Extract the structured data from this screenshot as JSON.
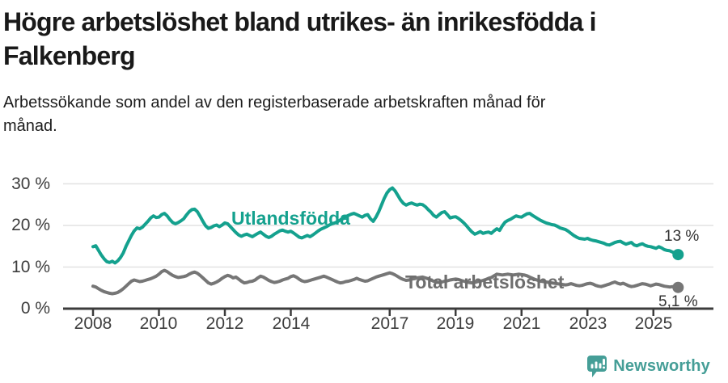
{
  "header": {
    "title_lines": [
      "Högre arbetslöshet bland utrikes- än inrikesfödda i",
      "Falkenberg"
    ],
    "subtitle_lines": [
      "Arbetssökande som andel av den registerbaserade arbetskraften månad för",
      "månad."
    ]
  },
  "chart_data": {
    "type": "line",
    "title": "Högre arbetslöshet bland utrikes- än inrikesfödda i Falkenberg",
    "subtitle": "Arbetssökande som andel av den registerbaserade arbetskraften månad för månad.",
    "unit": "%",
    "x_start": "2008-01",
    "x_end": "2025-10",
    "x_step": "month",
    "ylim": [
      0,
      30
    ],
    "grid": "horizontal",
    "legend_position": "inline-labels",
    "y_axis": {
      "labels": [
        "30 %",
        "20 %",
        "10 %",
        "0 %"
      ],
      "values": [
        30,
        20,
        10,
        0
      ]
    },
    "x_axis": {
      "labels": [
        "2008",
        "2010",
        "2012",
        "2014",
        "2017",
        "2019",
        "2021",
        "2023",
        "2025"
      ],
      "values": [
        2008,
        2010,
        2012,
        2014,
        2017,
        2019,
        2021,
        2023,
        2025
      ]
    },
    "series": [
      {
        "name": "Utlandsfödda",
        "color": "#14a18e",
        "label_color": "#14a18e",
        "end_label": "13 %",
        "end_value": 13.0,
        "values": [
          14.9,
          15.1,
          14.0,
          12.9,
          12.0,
          11.3,
          11.1,
          11.4,
          11.0,
          11.5,
          12.3,
          13.4,
          15.0,
          16.3,
          17.6,
          18.7,
          19.4,
          19.2,
          19.6,
          20.3,
          21.0,
          21.8,
          22.3,
          21.9,
          22.0,
          22.6,
          22.9,
          22.3,
          21.4,
          20.7,
          20.4,
          20.7,
          21.1,
          21.6,
          22.5,
          23.3,
          23.8,
          23.9,
          23.3,
          22.2,
          21.0,
          19.9,
          19.3,
          19.5,
          19.9,
          20.1,
          19.7,
          20.1,
          20.6,
          20.4,
          19.7,
          19.0,
          18.3,
          17.7,
          17.4,
          17.7,
          17.9,
          17.6,
          17.3,
          17.7,
          18.1,
          18.4,
          17.9,
          17.4,
          17.1,
          17.4,
          17.9,
          18.3,
          18.7,
          18.9,
          18.6,
          18.4,
          18.6,
          18.2,
          17.7,
          17.2,
          17.0,
          17.3,
          17.6,
          17.3,
          17.7,
          18.2,
          18.7,
          19.1,
          19.4,
          19.7,
          20.1,
          20.4,
          20.6,
          20.9,
          21.3,
          21.8,
          22.1,
          22.4,
          22.7,
          22.9,
          22.6,
          22.3,
          22.0,
          22.4,
          22.6,
          21.6,
          21.0,
          22.0,
          23.3,
          24.9,
          26.5,
          27.8,
          28.6,
          29.0,
          28.3,
          27.2,
          26.1,
          25.3,
          24.9,
          25.2,
          25.4,
          25.1,
          24.9,
          25.1,
          25.0,
          24.5,
          23.8,
          23.2,
          22.4,
          22.0,
          22.6,
          23.1,
          23.3,
          22.6,
          21.8,
          22.0,
          22.1,
          21.7,
          21.2,
          20.6,
          19.9,
          19.1,
          18.4,
          17.9,
          18.2,
          18.5,
          18.1,
          18.3,
          18.4,
          18.1,
          18.7,
          19.2,
          18.8,
          19.9,
          20.8,
          21.2,
          21.5,
          21.9,
          22.3,
          22.1,
          22.0,
          22.4,
          22.8,
          22.9,
          22.4,
          22.0,
          21.6,
          21.2,
          20.9,
          20.6,
          20.4,
          20.2,
          20.1,
          19.8,
          19.4,
          19.2,
          19.0,
          18.6,
          18.1,
          17.6,
          17.2,
          16.9,
          16.8,
          16.7,
          16.9,
          16.6,
          16.4,
          16.3,
          16.1,
          15.9,
          15.7,
          15.4,
          15.3,
          15.6,
          15.9,
          16.1,
          16.2,
          15.8,
          15.5,
          15.7,
          15.9,
          15.3,
          15.1,
          15.4,
          15.6,
          15.2,
          15.0,
          14.9,
          14.7,
          14.5,
          14.9,
          14.6,
          14.2,
          14.0,
          13.9,
          13.6,
          13.3,
          13.0
        ]
      },
      {
        "name": "Total arbetslöshet",
        "color": "#767676",
        "label_color": "#6e6e6e",
        "end_label": "5,1 %",
        "end_value": 5.1,
        "values": [
          5.4,
          5.2,
          4.8,
          4.4,
          4.1,
          3.9,
          3.7,
          3.6,
          3.7,
          3.9,
          4.3,
          4.8,
          5.4,
          6.0,
          6.6,
          6.9,
          6.7,
          6.5,
          6.6,
          6.8,
          7.0,
          7.2,
          7.5,
          7.8,
          8.3,
          8.9,
          9.2,
          8.9,
          8.4,
          8.0,
          7.7,
          7.5,
          7.6,
          7.7,
          7.9,
          8.3,
          8.6,
          8.8,
          8.5,
          8.0,
          7.4,
          6.8,
          6.2,
          5.9,
          6.1,
          6.4,
          6.8,
          7.3,
          7.7,
          8.0,
          7.8,
          7.4,
          7.6,
          7.1,
          6.6,
          6.2,
          6.3,
          6.5,
          6.6,
          6.9,
          7.4,
          7.8,
          7.6,
          7.2,
          6.8,
          6.5,
          6.3,
          6.4,
          6.6,
          6.9,
          7.1,
          7.3,
          7.7,
          7.9,
          7.6,
          7.1,
          6.7,
          6.5,
          6.6,
          6.8,
          7.0,
          7.2,
          7.4,
          7.6,
          7.8,
          7.6,
          7.3,
          7.0,
          6.7,
          6.4,
          6.2,
          6.3,
          6.5,
          6.6,
          6.8,
          7.0,
          7.3,
          7.0,
          6.8,
          6.6,
          6.7,
          7.0,
          7.3,
          7.6,
          7.8,
          8.0,
          8.2,
          8.4,
          8.6,
          8.4,
          8.1,
          7.7,
          7.3,
          7.0,
          6.8,
          6.9,
          7.1,
          7.2,
          7.4,
          7.5,
          7.6,
          7.4,
          7.2,
          6.9,
          6.6,
          6.4,
          6.3,
          6.4,
          6.6,
          6.7,
          6.9,
          7.0,
          7.1,
          7.0,
          6.8,
          6.6,
          6.4,
          6.3,
          6.2,
          6.3,
          6.5,
          6.6,
          6.8,
          7.0,
          7.3,
          7.5,
          7.9,
          8.3,
          8.2,
          8.1,
          8.2,
          8.3,
          8.2,
          8.1,
          8.2,
          8.3,
          8.2,
          8.1,
          7.9,
          7.6,
          7.3,
          7.0,
          6.8,
          6.6,
          6.5,
          6.4,
          6.3,
          6.2,
          6.1,
          6.0,
          5.9,
          5.8,
          5.7,
          5.8,
          6.0,
          5.8,
          5.6,
          5.5,
          5.6,
          5.8,
          6.0,
          6.1,
          5.9,
          5.6,
          5.4,
          5.3,
          5.5,
          5.7,
          5.9,
          6.2,
          6.4,
          6.1,
          5.9,
          6.1,
          5.8,
          5.5,
          5.3,
          5.4,
          5.6,
          5.8,
          6.0,
          5.9,
          5.7,
          5.5,
          5.7,
          5.9,
          5.8,
          5.6,
          5.4,
          5.3,
          5.2,
          5.3,
          5.2,
          5.1
        ]
      }
    ]
  },
  "footer": {
    "brand": "Newsworthy",
    "brand_icon": "bar-chart-pin-icon",
    "brand_color": "#459e97"
  },
  "colors": {
    "background": "#ffffff",
    "gridline": "#e2e2e2",
    "axis": "#3c3c3c",
    "axis_text": "#3d3d3d",
    "title_text": "#191919"
  }
}
